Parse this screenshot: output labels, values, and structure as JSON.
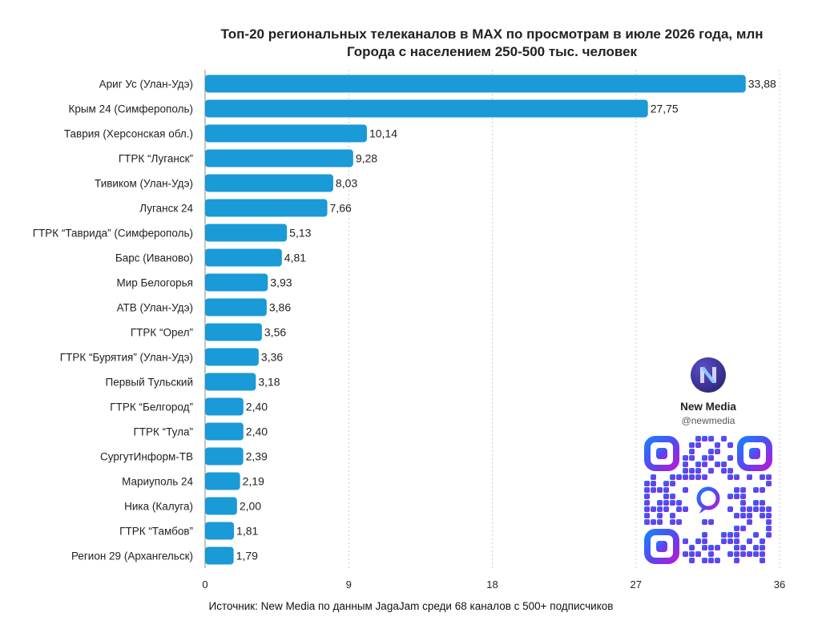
{
  "chart_data": {
    "type": "bar",
    "orientation": "horizontal",
    "title": "Топ-20 региональных телеканалов в MAX по просмотрам в июле 2026 года, млн",
    "subtitle": "Города с населением 250-500 тыс. человек",
    "categories": [
      "Ариг Ус (Улан-Удэ)",
      "Крым 24 (Симферополь)",
      "Таврия (Херсонская обл.)",
      "ГТРК “Луганск”",
      "Тивиком (Улан-Удэ)",
      "Луганск 24",
      "ГТРК “Таврида” (Симферополь)",
      "Барс (Иваново)",
      "Мир Белогорья",
      "АТВ (Улан-Удэ)",
      "ГТРК “Орел”",
      "ГТРК “Бурятия” (Улан-Удэ)",
      "Первый Тульский",
      "ГТРК “Белгород”",
      "ГТРК “Тула”",
      "СургутИнформ-ТВ",
      "Мариуполь 24",
      "Ника (Калуга)",
      "ГТРК “Тамбов”",
      "Регион 29 (Архангельск)"
    ],
    "values": [
      33.88,
      27.75,
      10.14,
      9.28,
      8.03,
      7.66,
      5.13,
      4.81,
      3.93,
      3.86,
      3.56,
      3.36,
      3.18,
      2.4,
      2.4,
      2.39,
      2.19,
      2.0,
      1.81,
      1.79
    ],
    "value_labels": [
      "33,88",
      "27,75",
      "10,14",
      "9,28",
      "8,03",
      "7,66",
      "5,13",
      "4,81",
      "3,93",
      "3,86",
      "3,56",
      "3,36",
      "3,18",
      "2,40",
      "2,40",
      "2,39",
      "2,19",
      "2,00",
      "1,81",
      "1,79"
    ],
    "xlim": [
      0,
      36
    ],
    "xticks": [
      0,
      9,
      18,
      27,
      36
    ],
    "grid": "vertical dashed",
    "bar_color": "#1a9ad6"
  },
  "source_text": "Источник: New Media по данным JagaJam среди 68 каналов с 500+ подписчиков",
  "brand": {
    "name": "New Media",
    "handle": "@newmedia",
    "logo_icon": "new-media-logo",
    "logo_text": "New Media"
  },
  "qr": {
    "icon": "qr-code",
    "gradient_colors": [
      "#1e7bff",
      "#6b3cf2",
      "#b41bd9"
    ]
  }
}
